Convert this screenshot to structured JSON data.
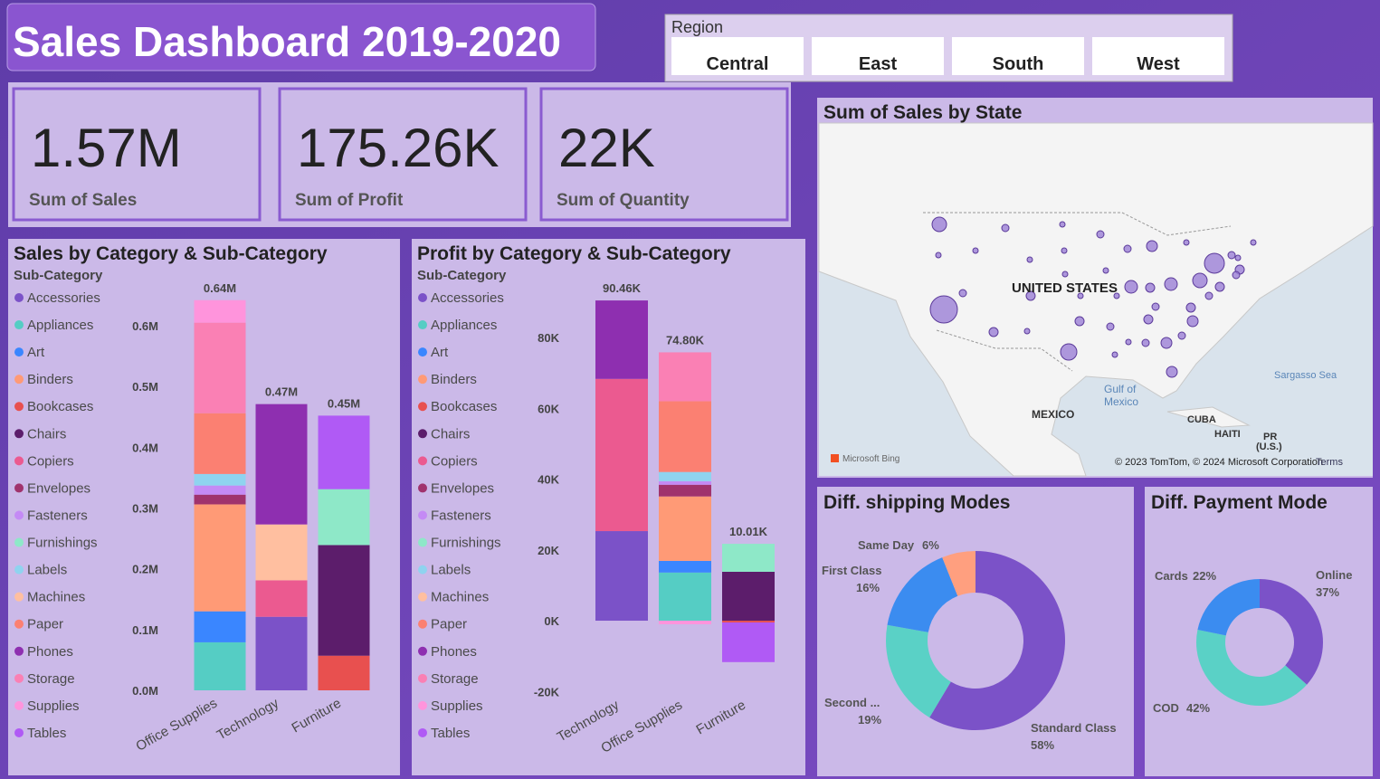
{
  "header": {
    "title": "Sales Dashboard 2019-2020"
  },
  "slicer": {
    "title": "Region",
    "options": [
      "Central",
      "East",
      "South",
      "West"
    ]
  },
  "cards": [
    {
      "value": "1.57M",
      "label": "Sum of Sales"
    },
    {
      "value": "175.26K",
      "label": "Sum of Profit"
    },
    {
      "value": "22K",
      "label": "Sum of Quantity"
    }
  ],
  "chart_data": [
    {
      "type": "stacked_bar",
      "title": "Sales by Category & Sub-Category",
      "legend_title": "Sub-Category",
      "categories": [
        "Office Supplies",
        "Technology",
        "Furniture"
      ],
      "series": [
        {
          "name": "Accessories",
          "color": "#7b52c8",
          "values": [
            null,
            121000,
            null
          ]
        },
        {
          "name": "Appliances",
          "color": "#55cdc4",
          "values": [
            79000,
            null,
            null
          ]
        },
        {
          "name": "Art",
          "color": "#3a86ff",
          "values": [
            51000,
            null,
            null
          ]
        },
        {
          "name": "Binders",
          "color": "#ff9a76",
          "values": [
            176000,
            null,
            null
          ]
        },
        {
          "name": "Bookcases",
          "color": "#e8504f",
          "values": [
            null,
            null,
            57000
          ]
        },
        {
          "name": "Chairs",
          "color": "#5c1d6b",
          "values": [
            null,
            null,
            182000
          ]
        },
        {
          "name": "Copiers",
          "color": "#eb5a90",
          "values": [
            null,
            60000,
            null
          ]
        },
        {
          "name": "Envelopes",
          "color": "#a0336d",
          "values": [
            16000,
            null,
            null
          ]
        },
        {
          "name": "Fasteners",
          "color": "#c48af5",
          "values": [
            15000,
            null,
            null
          ]
        },
        {
          "name": "Furnishings",
          "color": "#8ee8c8",
          "values": [
            null,
            null,
            92000
          ]
        },
        {
          "name": "Labels",
          "color": "#8fd3ef",
          "values": [
            19000,
            null,
            null
          ]
        },
        {
          "name": "Machines",
          "color": "#ffbfa0",
          "values": [
            null,
            92000,
            null
          ]
        },
        {
          "name": "Paper",
          "color": "#fb8072",
          "values": [
            100000,
            null,
            null
          ]
        },
        {
          "name": "Phones",
          "color": "#8e2fb0",
          "values": [
            null,
            198000,
            null
          ]
        },
        {
          "name": "Storage",
          "color": "#fa80b4",
          "values": [
            149000,
            null,
            null
          ]
        },
        {
          "name": "Supplies",
          "color": "#ff94dc",
          "values": [
            37000,
            null,
            null
          ]
        },
        {
          "name": "Tables",
          "color": "#b05af5",
          "values": [
            null,
            null,
            121000
          ]
        }
      ],
      "totals": [
        640000,
        470000,
        450000
      ],
      "total_labels": [
        "0.64M",
        "0.47M",
        "0.45M"
      ],
      "ylim": [
        0,
        650000
      ],
      "yticks": [
        {
          "value": 0,
          "label": "0.0M"
        },
        {
          "value": 100000,
          "label": "0.1M"
        },
        {
          "value": 200000,
          "label": "0.2M"
        },
        {
          "value": 300000,
          "label": "0.3M"
        },
        {
          "value": 400000,
          "label": "0.4M"
        },
        {
          "value": 500000,
          "label": "0.5M"
        },
        {
          "value": 600000,
          "label": "0.6M"
        }
      ]
    },
    {
      "type": "stacked_bar",
      "title": "Profit by Category & Sub-Category",
      "legend_title": "Sub-Category",
      "categories": [
        "Technology",
        "Office Supplies",
        "Furniture"
      ],
      "series": [
        {
          "name": "Accessories",
          "color": "#7b52c8",
          "values": [
            25300,
            null,
            null
          ]
        },
        {
          "name": "Appliances",
          "color": "#55cdc4",
          "values": [
            null,
            13600,
            null
          ]
        },
        {
          "name": "Art",
          "color": "#3a86ff",
          "values": [
            null,
            3300,
            null
          ]
        },
        {
          "name": "Binders",
          "color": "#ff9a76",
          "values": [
            null,
            18200,
            null
          ]
        },
        {
          "name": "Bookcases",
          "color": "#e8504f",
          "values": [
            null,
            null,
            -500
          ]
        },
        {
          "name": "Chairs",
          "color": "#5c1d6b",
          "values": [
            null,
            null,
            13810
          ]
        },
        {
          "name": "Copiers",
          "color": "#eb5a90",
          "values": [
            43000,
            null,
            null
          ]
        },
        {
          "name": "Envelopes",
          "color": "#a0336d",
          "values": [
            null,
            3300,
            null
          ]
        },
        {
          "name": "Fasteners",
          "color": "#c48af5",
          "values": [
            null,
            1000,
            null
          ]
        },
        {
          "name": "Furnishings",
          "color": "#8ee8c8",
          "values": [
            null,
            null,
            7900
          ]
        },
        {
          "name": "Labels",
          "color": "#8fd3ef",
          "values": [
            null,
            2600,
            null
          ]
        },
        {
          "name": "Machines",
          "color": "#ffbfa0",
          "values": [
            null,
            null,
            null
          ]
        },
        {
          "name": "Paper",
          "color": "#fb8072",
          "values": [
            null,
            20000,
            null
          ]
        },
        {
          "name": "Phones",
          "color": "#8e2fb0",
          "values": [
            22160,
            null,
            null
          ]
        },
        {
          "name": "Storage",
          "color": "#fa80b4",
          "values": [
            null,
            13800,
            null
          ]
        },
        {
          "name": "Supplies",
          "color": "#ff94dc",
          "values": [
            null,
            -1000,
            null
          ]
        },
        {
          "name": "Tables",
          "color": "#b05af5",
          "values": [
            null,
            null,
            -11200
          ]
        }
      ],
      "totals": [
        90460,
        74800,
        10010
      ],
      "total_labels": [
        "90.46K",
        "74.80K",
        "10.01K"
      ],
      "ylim": [
        -22000,
        96000
      ],
      "yticks": [
        {
          "value": -20000,
          "label": "-20K"
        },
        {
          "value": 0,
          "label": "0K"
        },
        {
          "value": 20000,
          "label": "20K"
        },
        {
          "value": 40000,
          "label": "40K"
        },
        {
          "value": 60000,
          "label": "60K"
        },
        {
          "value": 80000,
          "label": "80K"
        }
      ]
    },
    {
      "type": "map",
      "title": "Sum of Sales by State",
      "color": "#9b7fd6",
      "values": [
        64000,
        16000,
        9000,
        16000,
        16000,
        36000,
        9000,
        9000,
        16000,
        9000,
        121000,
        25000,
        16000,
        9000,
        9000,
        9000,
        9000,
        9000,
        9000,
        64000,
        49000,
        25000,
        49000,
        25000,
        16000,
        225000,
        16000,
        25000,
        9000,
        9000,
        16000,
        25000,
        25000,
        9000,
        25000,
        16000,
        25000,
        36000,
        9000,
        16000,
        36000,
        16000,
        81000,
        9000,
        36000
      ],
      "annotations": [
        "UNITED STATES",
        "MEXICO",
        "Gulf of",
        "Mexico",
        "Sargasso Sea",
        "CUBA",
        "HAITI",
        "PR",
        "(U.S.)",
        "Microsoft Bing",
        "© 2023 TomTom, © 2024 Microsoft Corporation",
        "Terms"
      ]
    },
    {
      "type": "donut",
      "title": "Diff. shipping Modes",
      "categories": [
        "Standard Class",
        "Second ...",
        "First Class",
        "Same Day"
      ],
      "values": [
        58,
        19,
        16,
        6
      ],
      "value_labels": [
        "58%",
        "19%",
        "16%",
        "6%"
      ],
      "colors": [
        "#7b52c8",
        "#5ad1c6",
        "#3b8cf0",
        "#ff9f7f"
      ]
    },
    {
      "type": "donut",
      "title": "Diff. Payment Mode",
      "categories": [
        "Online",
        "COD",
        "Cards"
      ],
      "values": [
        37,
        42,
        22
      ],
      "value_labels": [
        "37%",
        "42%",
        "22%"
      ],
      "colors": [
        "#7b52c8",
        "#5ad1c6",
        "#3b8cf0"
      ]
    }
  ]
}
